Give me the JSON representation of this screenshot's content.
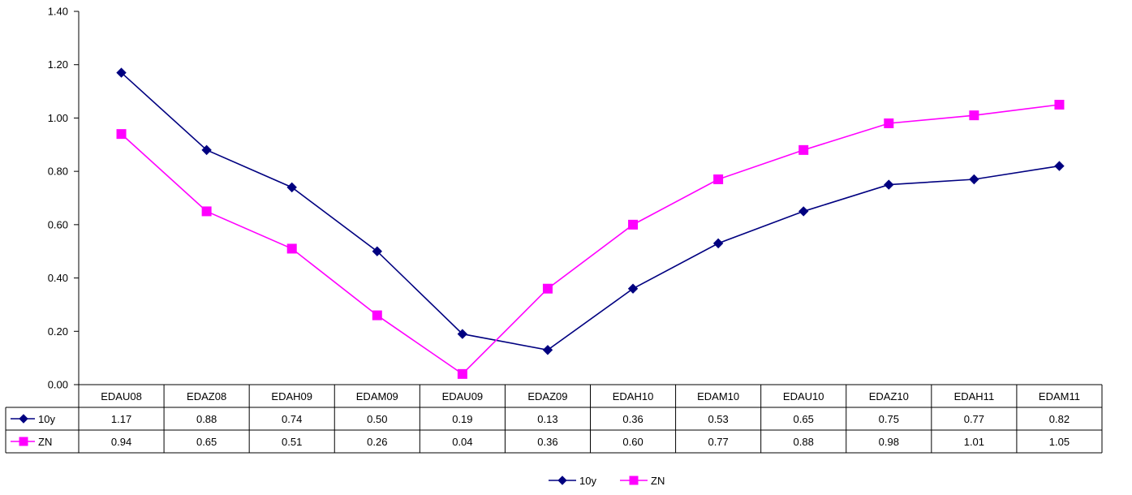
{
  "chart_data": {
    "type": "line",
    "categories": [
      "EDAU08",
      "EDAZ08",
      "EDAH09",
      "EDAM09",
      "EDAU09",
      "EDAZ09",
      "EDAH10",
      "EDAM10",
      "EDAU10",
      "EDAZ10",
      "EDAH11",
      "EDAM11"
    ],
    "series": [
      {
        "name": "10y",
        "values": [
          1.17,
          0.88,
          0.74,
          0.5,
          0.19,
          0.13,
          0.36,
          0.53,
          0.65,
          0.75,
          0.77,
          0.82
        ],
        "color": "#000080",
        "marker": "diamond"
      },
      {
        "name": "ZN",
        "values": [
          0.94,
          0.65,
          0.51,
          0.26,
          0.04,
          0.36,
          0.6,
          0.77,
          0.88,
          0.98,
          1.01,
          1.05
        ],
        "color": "#ff00ff",
        "marker": "square"
      }
    ],
    "ylim": [
      0,
      1.4
    ],
    "yticks": [
      "0.00",
      "0.20",
      "0.40",
      "0.60",
      "0.80",
      "1.00",
      "1.20",
      "1.40"
    ],
    "data_table": true,
    "legend_position": "bottom",
    "grid": false
  }
}
